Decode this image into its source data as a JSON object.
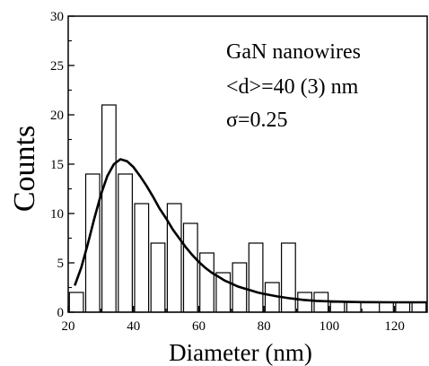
{
  "chart_data": {
    "type": "bar",
    "xlabel": "Diameter (nm)",
    "ylabel": "Counts",
    "xlim": [
      20,
      130
    ],
    "ylim": [
      0,
      30
    ],
    "x_ticks": [
      20,
      40,
      60,
      80,
      100,
      120
    ],
    "y_ticks": [
      0,
      5,
      10,
      15,
      20,
      25,
      30
    ],
    "bin_width": 5,
    "bins": [
      {
        "center": 22.5,
        "count": 2
      },
      {
        "center": 27.5,
        "count": 14
      },
      {
        "center": 32.5,
        "count": 21
      },
      {
        "center": 37.5,
        "count": 14
      },
      {
        "center": 42.5,
        "count": 11
      },
      {
        "center": 47.5,
        "count": 7
      },
      {
        "center": 52.5,
        "count": 11
      },
      {
        "center": 57.5,
        "count": 9
      },
      {
        "center": 62.5,
        "count": 6
      },
      {
        "center": 67.5,
        "count": 4
      },
      {
        "center": 72.5,
        "count": 5
      },
      {
        "center": 77.5,
        "count": 7
      },
      {
        "center": 82.5,
        "count": 3
      },
      {
        "center": 87.5,
        "count": 7
      },
      {
        "center": 92.5,
        "count": 2
      },
      {
        "center": 97.5,
        "count": 2
      },
      {
        "center": 102.5,
        "count": 1
      },
      {
        "center": 107.5,
        "count": 1
      },
      {
        "center": 117.5,
        "count": 1
      },
      {
        "center": 122.5,
        "count": 1
      },
      {
        "center": 127.5,
        "count": 1
      }
    ],
    "fit_curve": {
      "type": "log-normal",
      "points": [
        [
          22,
          2.7
        ],
        [
          24,
          4.5
        ],
        [
          26,
          6.9
        ],
        [
          28,
          9.5
        ],
        [
          30,
          11.9
        ],
        [
          32,
          13.8
        ],
        [
          34,
          15.0
        ],
        [
          36,
          15.5
        ],
        [
          38,
          15.3
        ],
        [
          40,
          14.7
        ],
        [
          42,
          13.8
        ],
        [
          44,
          12.8
        ],
        [
          46,
          11.7
        ],
        [
          48,
          10.5
        ],
        [
          50,
          9.5
        ],
        [
          52,
          8.4
        ],
        [
          54,
          7.5
        ],
        [
          56,
          6.6
        ],
        [
          58,
          5.8
        ],
        [
          60,
          5.1
        ],
        [
          62,
          4.5
        ],
        [
          64,
          4.0
        ],
        [
          66,
          3.6
        ],
        [
          68,
          3.2
        ],
        [
          70,
          2.9
        ],
        [
          72,
          2.6
        ],
        [
          74,
          2.4
        ],
        [
          76,
          2.2
        ],
        [
          78,
          2.0
        ],
        [
          80,
          1.85
        ],
        [
          84,
          1.6
        ],
        [
          88,
          1.4
        ],
        [
          92,
          1.25
        ],
        [
          96,
          1.15
        ],
        [
          100,
          1.1
        ],
        [
          105,
          1.05
        ],
        [
          110,
          1.02
        ],
        [
          120,
          1.0
        ],
        [
          130,
          1.0
        ]
      ]
    },
    "annotations": [
      "GaN nanowires",
      "<d>=40 (3) nm",
      "σ=0.25"
    ]
  }
}
